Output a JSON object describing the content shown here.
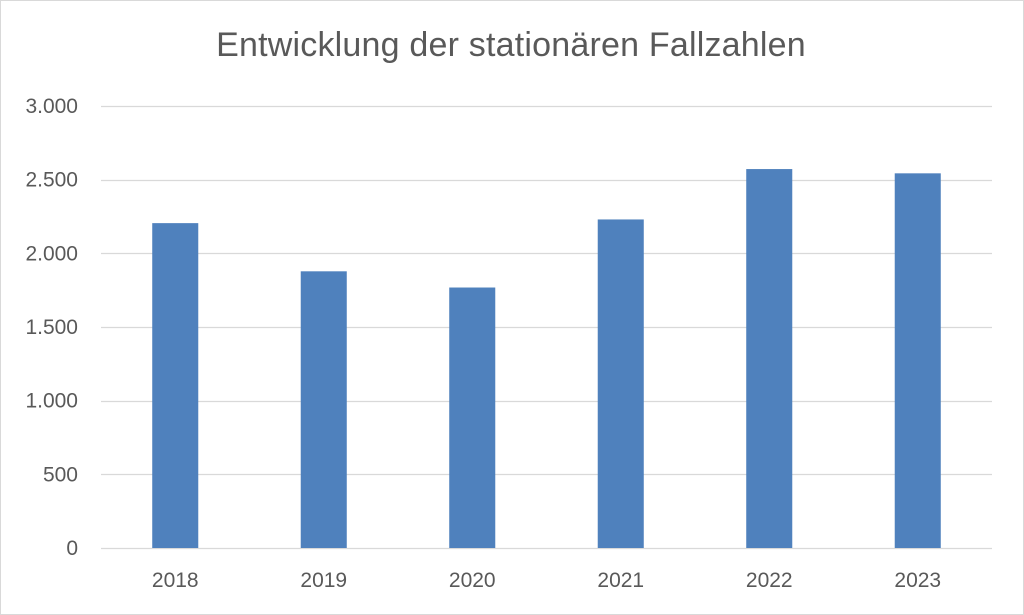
{
  "chart_data": {
    "type": "bar",
    "title": "Entwicklung der stationären Fallzahlen",
    "xlabel": "",
    "ylabel": "",
    "categories": [
      "2018",
      "2019",
      "2020",
      "2021",
      "2022",
      "2023"
    ],
    "values": [
      2205,
      1878,
      1768,
      2230,
      2572,
      2543
    ],
    "ylim": [
      0,
      3000
    ],
    "yticks": [
      0,
      500,
      1000,
      1500,
      2000,
      2500,
      3000
    ],
    "ytick_labels": [
      "0",
      "500",
      "1.000",
      "1.500",
      "2.000",
      "2.500",
      "3.000"
    ],
    "grid": true,
    "legend": "none",
    "colors": {
      "bar": "#4f81bd",
      "grid": "#d9d9d9",
      "text": "#595959"
    }
  }
}
